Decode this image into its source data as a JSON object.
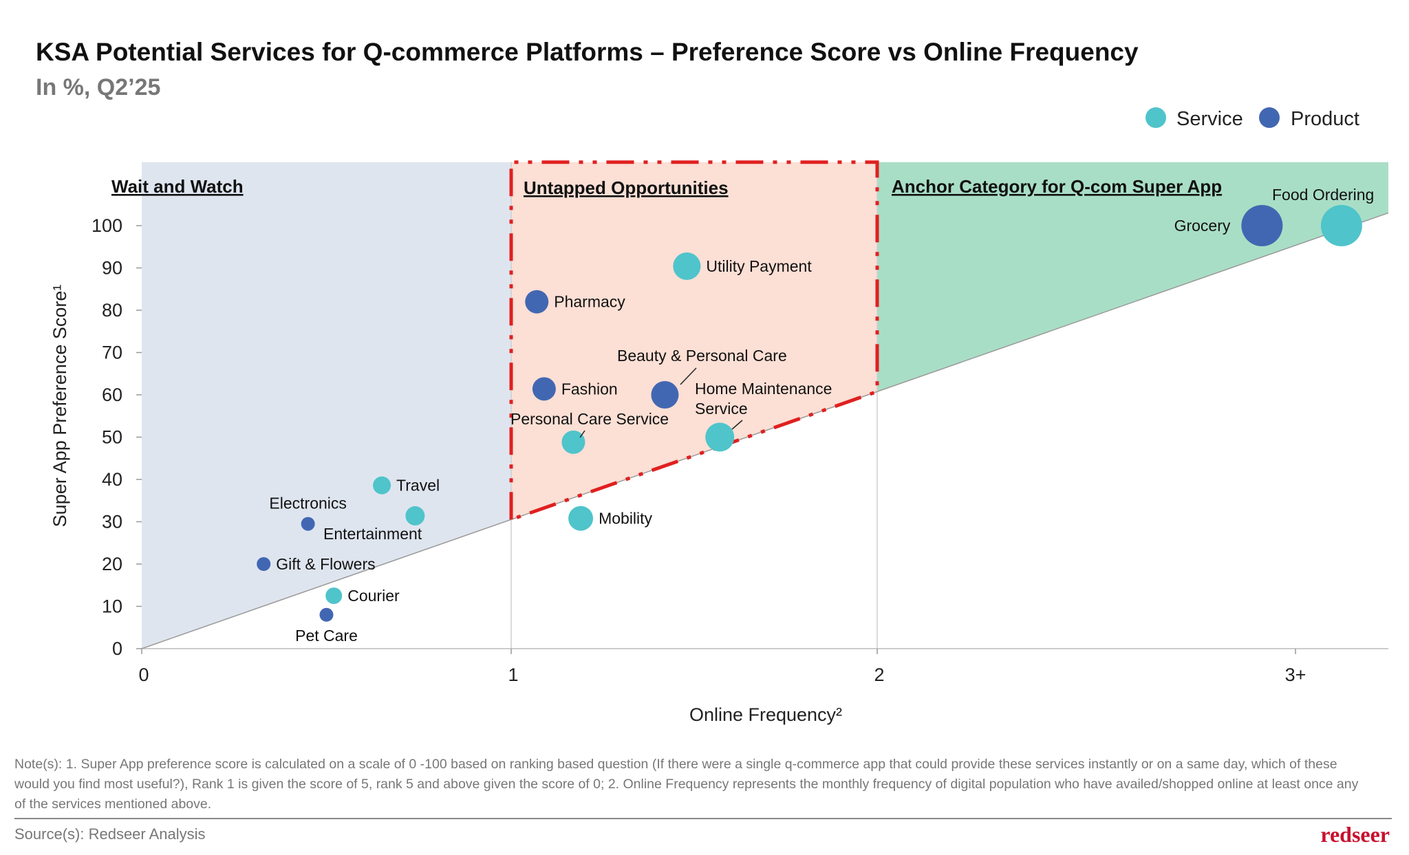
{
  "colors": {
    "service": "#4FC4CB",
    "product": "#4267B2",
    "wait_region": "#DFE5EF",
    "untapped_region": "#FCDFD5",
    "anchor_region": "#A9DEC6",
    "untapped_border": "#E02020"
  },
  "chart_data": {
    "type": "scatter",
    "title": "KSA Potential Services for Q-commerce Platforms – Preference Score vs Online Frequency",
    "subtitle": "In %, Q2’25",
    "xlabel": "Online Frequency²",
    "ylabel": "Super App Preference Score¹",
    "x_ticks": [
      "0",
      "1",
      "2",
      "3+"
    ],
    "y_ticks": [
      "0",
      "10",
      "20",
      "30",
      "40",
      "50",
      "60",
      "70",
      "80",
      "90",
      "100"
    ],
    "ylim": [
      0,
      115
    ],
    "legend": {
      "placement": "top-right",
      "entries": [
        {
          "name": "Service",
          "color_key": "service"
        },
        {
          "name": "Product",
          "color_key": "product"
        }
      ]
    },
    "regions": [
      {
        "label": "Wait and Watch",
        "x_range": [
          0,
          1
        ],
        "color_key": "wait_region"
      },
      {
        "label": "Untapped Opportunities",
        "x_range": [
          1,
          2
        ],
        "color_key": "untapped_region"
      },
      {
        "label": "Anchor Category for Q-com Super App",
        "x_range": [
          2,
          3.22
        ],
        "color_key": "anchor_region"
      }
    ],
    "diagonal": [
      [
        0,
        0
      ],
      [
        3.22,
        103
      ]
    ],
    "points": [
      {
        "label": "Pet Care",
        "type": "Product",
        "x": 0.5,
        "y": 8,
        "size": 1
      },
      {
        "label": "Courier",
        "type": "Service",
        "x": 0.52,
        "y": 12.5,
        "size": 1.2
      },
      {
        "label": "Gift & Flowers",
        "type": "Product",
        "x": 0.33,
        "y": 20,
        "size": 1
      },
      {
        "label": "Electronics",
        "type": "Product",
        "x": 0.45,
        "y": 29.5,
        "size": 1
      },
      {
        "label": "Entertainment",
        "type": "Service",
        "x": 0.74,
        "y": 31.4,
        "size": 1.4
      },
      {
        "label": "Travel",
        "type": "Service",
        "x": 0.65,
        "y": 38.6,
        "size": 1.3
      },
      {
        "label": "Mobility",
        "type": "Service",
        "x": 1.19,
        "y": 30.8,
        "size": 1.8
      },
      {
        "label": "Personal Care Service",
        "type": "Service",
        "x": 1.17,
        "y": 48.8,
        "size": 1.7
      },
      {
        "label": "Fashion",
        "type": "Product",
        "x": 1.09,
        "y": 61.4,
        "size": 1.7
      },
      {
        "label": "Pharmacy",
        "type": "Product",
        "x": 1.07,
        "y": 82,
        "size": 1.7
      },
      {
        "label": "Utility Payment",
        "type": "Service",
        "x": 1.48,
        "y": 90.4,
        "size": 2
      },
      {
        "label": "Beauty & Personal Care",
        "type": "Product",
        "x": 1.42,
        "y": 60,
        "size": 2
      },
      {
        "label": "Home Maintenance Service",
        "label_lines": [
          "Home Maintenance",
          "Service"
        ],
        "type": "Service",
        "x": 1.57,
        "y": 50,
        "size": 2.1
      },
      {
        "label": "Grocery",
        "type": "Product",
        "x": 2.92,
        "y": 100,
        "size": 3
      },
      {
        "label": "Food Ordering",
        "type": "Service",
        "x": 3.11,
        "y": 100,
        "size": 3
      }
    ]
  },
  "footer": {
    "notes": [
      "Note(s): 1. Super App preference score is calculated on a scale of 0 -100 based on ranking based question (If there were a single q-commerce app that could provide these services instantly or on a same day, which of these",
      "would you find most useful?), Rank 1 is given the score of 5, rank 5 and above given the score of 0; 2. Online Frequency represents the monthly frequency of digital population who have availed/shopped online at least once any",
      "of the services mentioned above."
    ],
    "source": "Source(s): Redseer Analysis",
    "logo": "redseer"
  }
}
